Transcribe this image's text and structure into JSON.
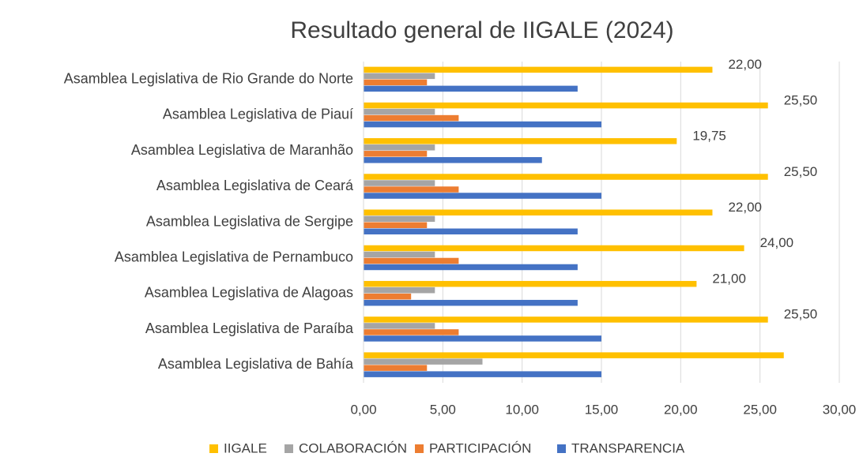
{
  "chart_data": {
    "type": "hbar",
    "title": "Resultado general de IIGALE (2024)",
    "categories": [
      "Asamblea Legislativa de Rio Grande do Norte",
      "Asamblea Legislativa de Piauí",
      "Asamblea Legislativa de Maranhão",
      "Asamblea Legislativa de Ceará",
      "Asamblea Legislativa de Sergipe",
      "Asamblea Legislativa de Pernambuco",
      "Asamblea Legislativa de Alagoas",
      "Asamblea Legislativa de Paraíba",
      "Asamblea Legislativa de Bahía"
    ],
    "series": [
      {
        "name": "IIGALE",
        "color": "#ffc000",
        "values": [
          22,
          25.5,
          19.75,
          25.5,
          22,
          24,
          21,
          25.5,
          26.5
        ],
        "value_labels": [
          "22,00",
          "25,50",
          "19,75",
          "25,50",
          "22,00",
          "24,00",
          "21,00",
          "25,50",
          null
        ]
      },
      {
        "name": "COLABORACIÓN",
        "color": "#a5a5a5",
        "values": [
          4.5,
          4.5,
          4.5,
          4.5,
          4.5,
          4.5,
          4.5,
          4.5,
          7.5
        ]
      },
      {
        "name": "PARTICIPACIÓN",
        "color": "#ed7d31",
        "values": [
          4,
          6,
          4,
          6,
          4,
          6,
          3,
          6,
          4
        ]
      },
      {
        "name": "TRANSPARENCIA",
        "color": "#4472c4",
        "values": [
          13.5,
          15,
          11.25,
          15,
          13.5,
          13.5,
          13.5,
          15,
          15
        ]
      }
    ],
    "xlim": [
      0,
      30
    ],
    "xticks": [
      {
        "value": 0,
        "label": "0,00"
      },
      {
        "value": 5,
        "label": "5,00"
      },
      {
        "value": 10,
        "label": "10,00"
      },
      {
        "value": 15,
        "label": "15,00"
      },
      {
        "value": 20,
        "label": "20,00"
      },
      {
        "value": 25,
        "label": "25,00"
      },
      {
        "value": 30,
        "label": "30,00"
      }
    ],
    "grid": true,
    "legend": "bottom"
  }
}
